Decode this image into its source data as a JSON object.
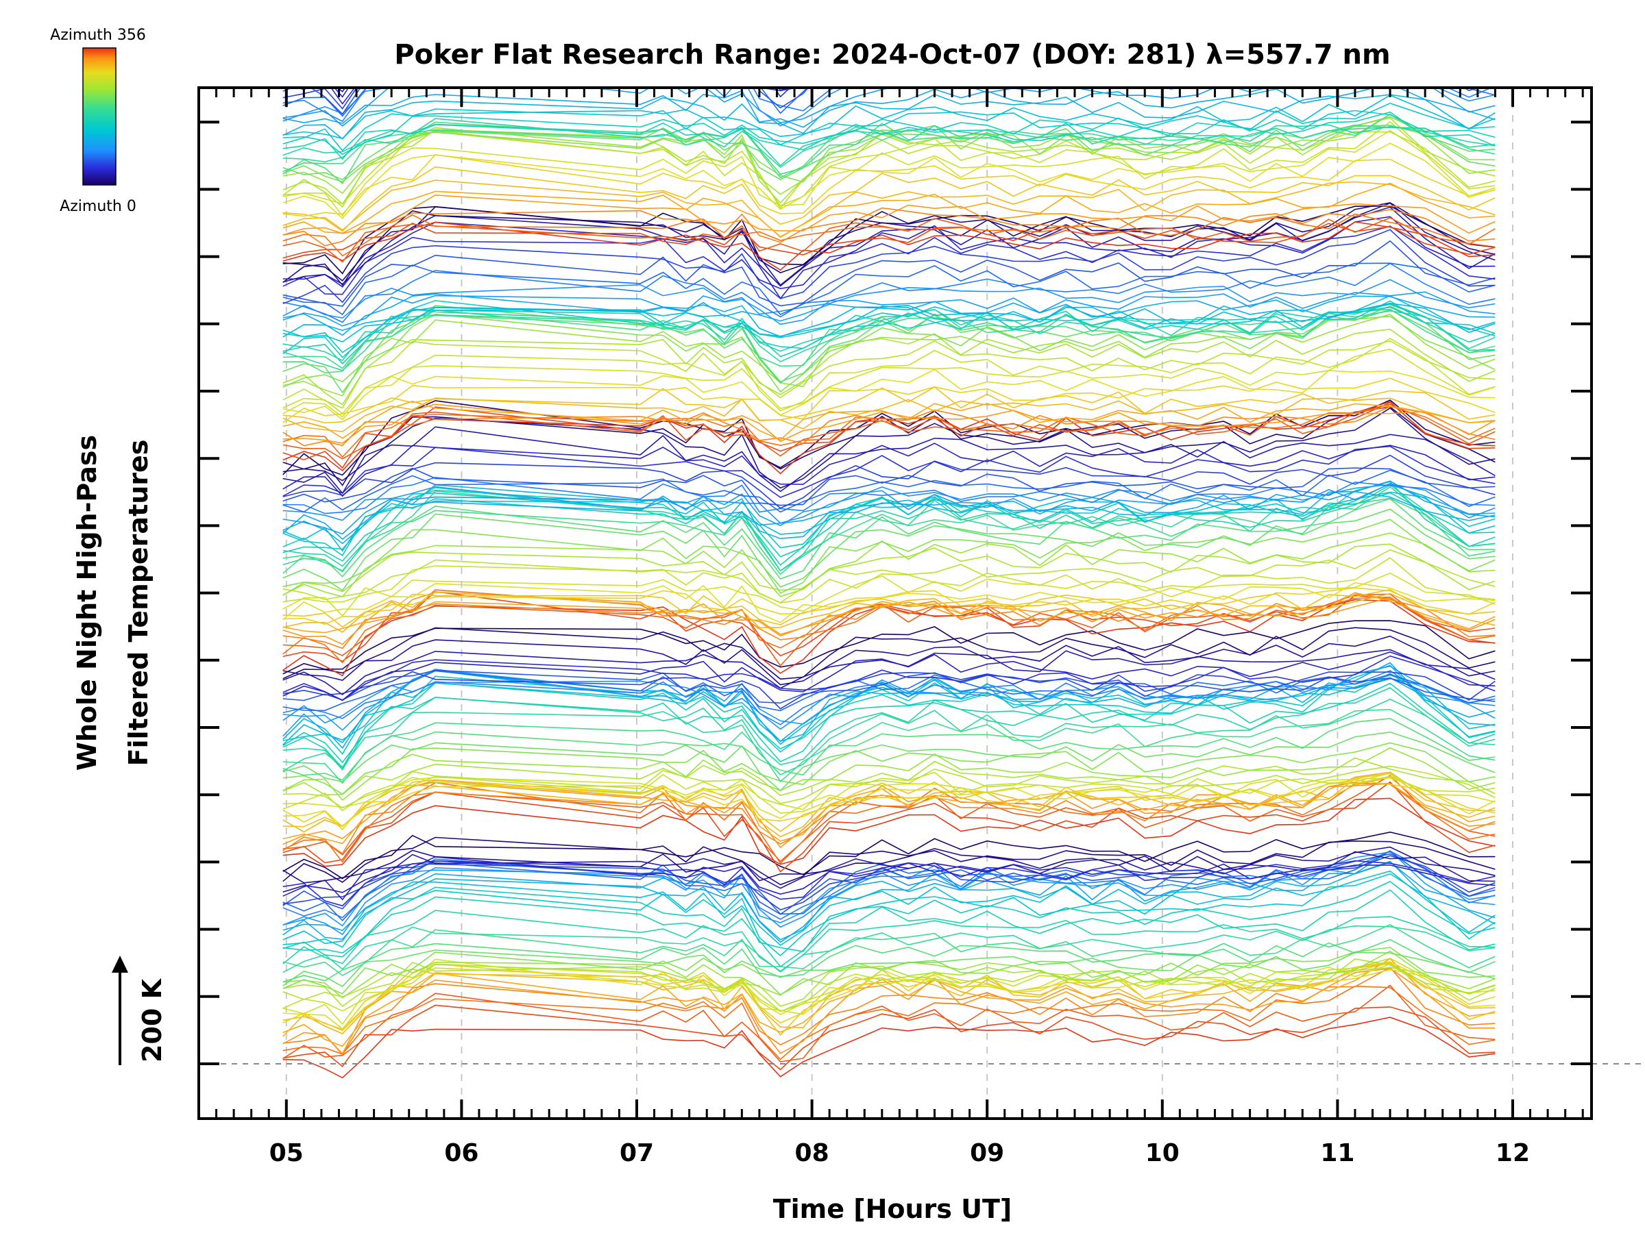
{
  "chart_data": {
    "type": "line",
    "title": "Poker Flat Research Range: 2024-Oct-07 (DOY: 281) λ=557.7 nm",
    "xlabel": "Time [Hours UT]",
    "ylabel_line1": "Whole Night High-Pass",
    "ylabel_line2": "Filtered Temperatures",
    "xlim": [
      4.5,
      12.45
    ],
    "x_ticks": [
      "05",
      "06",
      "07",
      "08",
      "09",
      "10",
      "11",
      "12"
    ],
    "scale_bar_label": "200 K",
    "colorbar": {
      "top_label": "Azimuth 356",
      "bottom_label": "Azimuth 0",
      "colormap": "rainbow",
      "colors": [
        "#1a0066",
        "#2a2ad8",
        "#1e90ff",
        "#00c8d2",
        "#32dc96",
        "#a0e632",
        "#e6dc1e",
        "#ff9614",
        "#e63214"
      ]
    },
    "grid": "vertical dashed at each hour",
    "series_note": "stacked azimuth traces, offset vertically; colour encodes azimuth",
    "x": [
      4.98,
      5.1,
      5.22,
      5.32,
      5.45,
      5.6,
      5.72,
      5.85,
      7.02,
      7.15,
      7.28,
      7.38,
      7.5,
      7.6,
      7.7,
      7.82,
      7.95,
      8.1,
      8.25,
      8.4,
      8.55,
      8.7,
      8.85,
      9.0,
      9.15,
      9.3,
      9.45,
      9.6,
      9.75,
      9.9,
      10.05,
      10.2,
      10.35,
      10.5,
      10.65,
      10.8,
      10.95,
      11.1,
      11.3,
      11.5,
      11.75,
      11.9
    ],
    "base_profile": [
      0,
      10,
      5,
      -12,
      30,
      55,
      70,
      85,
      60,
      65,
      50,
      58,
      42,
      58,
      20,
      -8,
      8,
      42,
      58,
      68,
      60,
      72,
      58,
      62,
      55,
      50,
      62,
      52,
      58,
      45,
      50,
      55,
      58,
      52,
      62,
      55,
      70,
      80,
      95,
      60,
      20,
      25
    ],
    "traces_per_stack": 40,
    "stacks": 8
  }
}
